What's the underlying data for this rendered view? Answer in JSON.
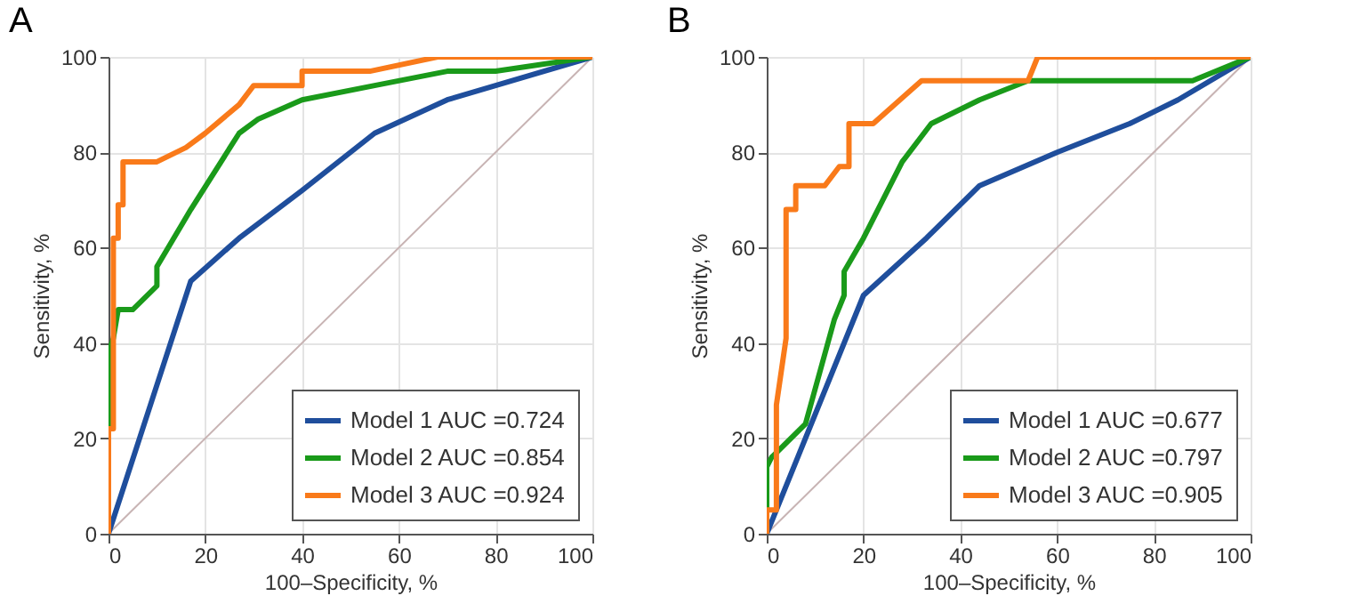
{
  "chart_data": [
    {
      "type": "line",
      "title": "A",
      "xlabel": "100–Specificity, %",
      "ylabel": "Sensitivity, %",
      "xlim": [
        0,
        100
      ],
      "ylim": [
        0,
        100
      ],
      "xticks": [
        0,
        20,
        40,
        60,
        80,
        100
      ],
      "yticks": [
        0,
        20,
        40,
        60,
        80,
        100
      ],
      "grid": true,
      "legend": "bottom right",
      "series": [
        {
          "color": "#c8b4b4",
          "x": [
            0,
            100
          ],
          "values": [
            0,
            100
          ]
        },
        {
          "name": "Model 1 AUC =0.724",
          "color": "#1f4e9c",
          "x": [
            0,
            17,
            27,
            40,
            55,
            70,
            80,
            100
          ],
          "values": [
            0,
            53,
            62,
            72,
            84,
            91,
            94,
            100
          ]
        },
        {
          "name": "Model 2 AUC =0.854",
          "color": "#1a9a1a",
          "x": [
            0,
            0,
            1,
            2,
            5,
            10,
            10,
            17,
            27,
            31,
            40,
            55,
            70,
            80,
            100
          ],
          "values": [
            0,
            38,
            41,
            47,
            47,
            52,
            56,
            68,
            84,
            87,
            91,
            94,
            97,
            97,
            100
          ]
        },
        {
          "name": "Model 3 AUC =0.924",
          "color": "#f97a1a",
          "x": [
            0,
            0,
            1,
            1,
            2,
            2,
            3,
            3,
            10,
            16,
            20,
            27,
            30,
            40,
            40,
            54,
            68,
            100
          ],
          "values": [
            0,
            22,
            22,
            62,
            62,
            69,
            69,
            78,
            78,
            81,
            84,
            90,
            94,
            94,
            97,
            97,
            100,
            100
          ]
        }
      ]
    },
    {
      "type": "line",
      "title": "B",
      "xlabel": "100–Specificity, %",
      "ylabel": "Sensitivity, %",
      "xlim": [
        0,
        100
      ],
      "ylim": [
        0,
        100
      ],
      "xticks": [
        0,
        20,
        40,
        60,
        80,
        100
      ],
      "yticks": [
        0,
        20,
        40,
        60,
        80,
        100
      ],
      "grid": true,
      "legend": "bottom right",
      "series": [
        {
          "color": "#c8b4b4",
          "x": [
            0,
            100
          ],
          "values": [
            0,
            100
          ]
        },
        {
          "name": "Model 1 AUC =0.677",
          "color": "#1f4e9c",
          "x": [
            0,
            20,
            33,
            44,
            60,
            75,
            85,
            100
          ],
          "values": [
            0,
            50,
            62,
            73,
            80,
            86,
            91,
            100
          ]
        },
        {
          "name": "Model 2 AUC =0.797",
          "color": "#1a9a1a",
          "x": [
            0,
            0,
            1,
            8,
            14,
            16,
            16,
            20,
            28,
            34,
            44,
            54,
            88,
            100
          ],
          "values": [
            0,
            14,
            16,
            23,
            45,
            50,
            55,
            62,
            78,
            86,
            91,
            95,
            95,
            100
          ]
        },
        {
          "name": "Model 3 AUC =0.905",
          "color": "#f97a1a",
          "x": [
            0,
            0,
            2,
            2,
            4,
            4,
            6,
            6,
            12,
            15,
            17,
            17,
            22,
            32,
            54,
            56,
            100
          ],
          "values": [
            0,
            5,
            5,
            27,
            41,
            68,
            68,
            73,
            73,
            77,
            77,
            86,
            86,
            95,
            95,
            100,
            100
          ]
        }
      ]
    }
  ]
}
